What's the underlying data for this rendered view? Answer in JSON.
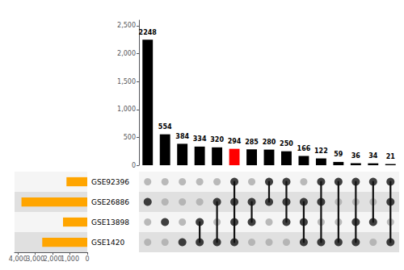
{
  "chart_data": [
    {
      "type": "bar",
      "values": [
        2248,
        554,
        384,
        334,
        320,
        294,
        285,
        280,
        250,
        166,
        122,
        59,
        36,
        34,
        21
      ],
      "colors": [
        "black",
        "black",
        "black",
        "black",
        "black",
        "red",
        "black",
        "black",
        "black",
        "black",
        "black",
        "black",
        "black",
        "black",
        "black"
      ],
      "ylim": [
        0,
        2600
      ],
      "yticks": [
        0,
        500,
        1000,
        1500,
        2000,
        2500
      ],
      "data_labels": true,
      "tick_labels": "y",
      "grid": false
    },
    {
      "type": "bar",
      "orientation": "horizontal",
      "categories": [
        "GSE1420",
        "GSE13898",
        "GSE26886",
        "GSE92396"
      ],
      "values": [
        2600,
        1400,
        3800,
        1200
      ],
      "color": "#FFA500",
      "xlim": [
        4200,
        0
      ],
      "xticks": [
        4000,
        3000,
        2000,
        1000,
        0
      ],
      "tick_labels": "x",
      "grid": false
    },
    {
      "type": "matrix",
      "dot_matrix": [
        [
          0,
          0,
          1,
          1,
          1,
          1,
          0,
          0,
          0,
          1,
          1,
          1,
          1,
          0,
          1
        ],
        [
          0,
          1,
          0,
          1,
          0,
          1,
          1,
          0,
          1,
          1,
          0,
          0,
          1,
          1,
          0
        ],
        [
          1,
          0,
          0,
          0,
          1,
          1,
          1,
          1,
          1,
          1,
          1,
          0,
          0,
          0,
          1
        ],
        [
          0,
          0,
          0,
          0,
          0,
          1,
          0,
          1,
          1,
          0,
          1,
          1,
          1,
          1,
          1
        ]
      ],
      "color": "#111111",
      "tick_labels": false
    }
  ]
}
